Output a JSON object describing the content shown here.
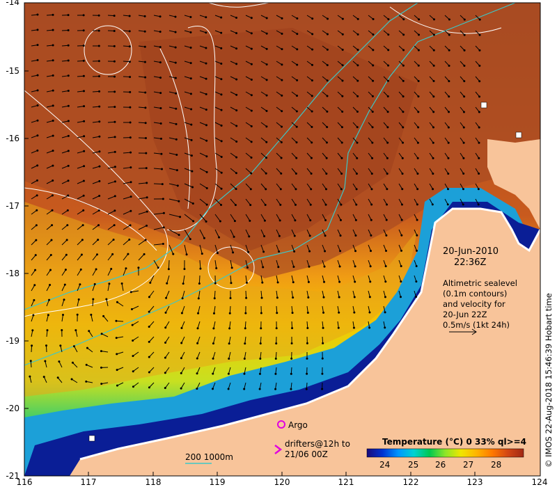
{
  "map": {
    "x_axis_ticks": [
      "116",
      "117",
      "118",
      "119",
      "120",
      "121",
      "122",
      "123",
      "124"
    ],
    "y_axis_ticks": [
      "-14",
      "-15",
      "-16",
      "-17",
      "-18",
      "-19",
      "-20",
      "-21"
    ],
    "land_color": "#f8c49a",
    "warm_color": "#a2471f",
    "coast_color": "#08148c",
    "contour_color": "#ffffff",
    "isobath_color": "#3cc8c8",
    "argo_color": "#e000e0"
  },
  "info": {
    "date": "20-Jun-2010",
    "time": "22:36Z",
    "altimetry_lines": [
      "Altimetric sealevel",
      "(0.1m contours)",
      "and velocity for",
      "20-Jun 22Z",
      "0.5m/s (1kt 24h)"
    ]
  },
  "legend": {
    "argo": "Argo",
    "drifters_line1": "drifters@12h to",
    "drifters_line2": "21/06 00Z",
    "isobath": "200  1000m"
  },
  "colorbar": {
    "title": "Temperature (°C) 0 33% ql>=4",
    "ticks": [
      "24",
      "25",
      "26",
      "27",
      "28"
    ],
    "colors": [
      "#1a0a7a",
      "#0032d2",
      "#0096ff",
      "#00d2d2",
      "#00c850",
      "#8ce628",
      "#f0e600",
      "#ffb400",
      "#ff7800",
      "#d24614",
      "#a02814"
    ]
  },
  "credit": "© IMOS 22-Aug-2018 15:46:39 Hobart time"
}
